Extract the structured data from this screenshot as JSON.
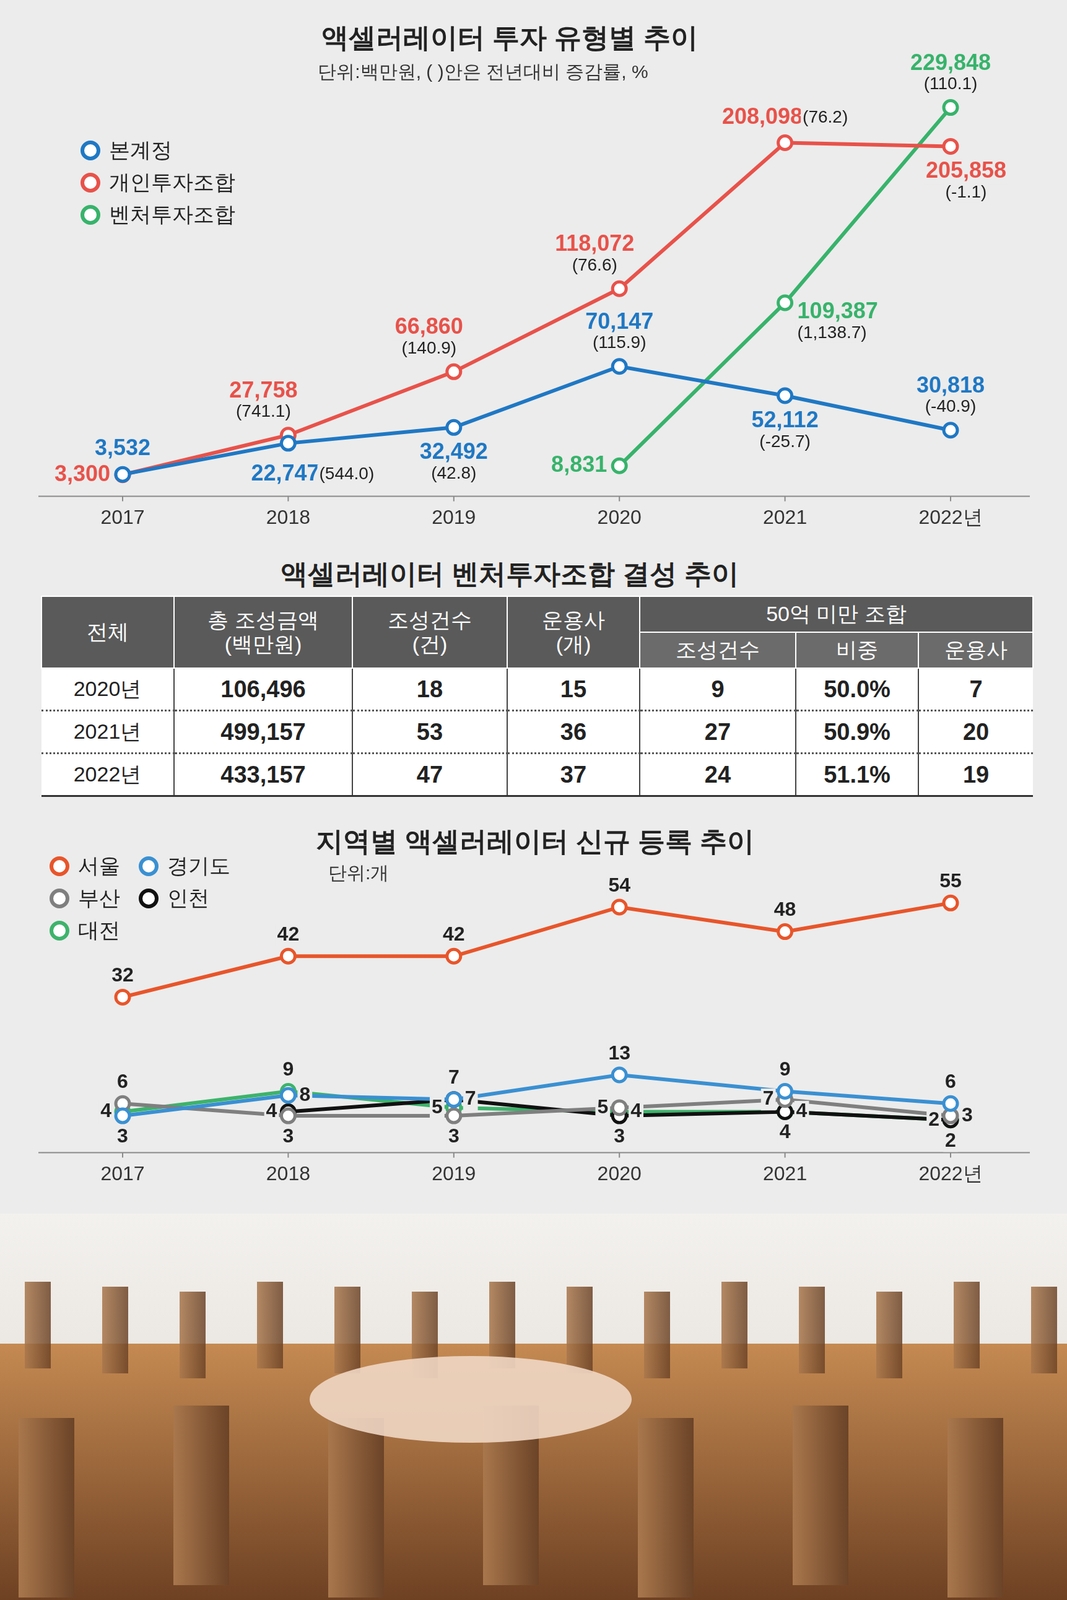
{
  "chart_data": [
    {
      "type": "line",
      "title": "액셀러레이터 투자 유형별 추이",
      "subtitle": "단위:백만원, ( )안은 전년대비 증감률, %",
      "categories": [
        "2017",
        "2018",
        "2019",
        "2020",
        "2021",
        "2022년"
      ],
      "series": [
        {
          "name": "본계정",
          "color": "#1f78c4",
          "marker": "circle",
          "values": [
            3532,
            22747,
            32492,
            70147,
            52112,
            30818
          ],
          "value_labels": [
            "3,532",
            "22,747",
            "32,492",
            "70,147",
            "52,112",
            "30,818"
          ],
          "change_labels": [
            null,
            "(544.0)",
            "(42.8)",
            "(115.9)",
            "(-25.7)",
            "(-40.9)"
          ]
        },
        {
          "name": "개인투자조합",
          "color": "#e8524a",
          "marker": "circle",
          "values": [
            3300,
            27758,
            66860,
            118072,
            208098,
            205858
          ],
          "value_labels": [
            "3,300",
            "27,758",
            "66,860",
            "118,072",
            "208,098",
            "205,858"
          ],
          "change_labels": [
            null,
            "(741.1)",
            "(140.9)",
            "(76.6)",
            "(76.2)",
            "(-1.1)"
          ]
        },
        {
          "name": "벤처투자조합",
          "color": "#37b36b",
          "marker": "circle",
          "values": [
            null,
            null,
            null,
            8831,
            109387,
            229848
          ],
          "value_labels": [
            null,
            null,
            null,
            "8,831",
            "109,387",
            "229,848"
          ],
          "change_labels": [
            null,
            null,
            null,
            null,
            "(1,138.7)",
            "(110.1)"
          ]
        }
      ],
      "ylim": [
        -10000,
        240000
      ],
      "grid": false,
      "tick_labels": "x",
      "legend": "top-left",
      "data_labels": true
    },
    {
      "type": "line",
      "title": "지역별 액셀러레이터 신규 등록 추이",
      "subtitle": "단위:개",
      "categories": [
        "2017",
        "2018",
        "2019",
        "2020",
        "2021",
        "2022년"
      ],
      "series": [
        {
          "name": "서울",
          "color": "#e8552a",
          "marker": "circle",
          "values": [
            32,
            42,
            42,
            54,
            48,
            55
          ]
        },
        {
          "name": "경기도",
          "color": "#3a90d2",
          "marker": "circle",
          "values": [
            3,
            8,
            7,
            13,
            9,
            6
          ]
        },
        {
          "name": "부산",
          "color": "#7f7f7f",
          "marker": "circle",
          "values": [
            6,
            3,
            3,
            5,
            7,
            3
          ]
        },
        {
          "name": "인천",
          "color": "#111111",
          "marker": "circle",
          "values": [
            null,
            4,
            7,
            3,
            4,
            2
          ]
        },
        {
          "name": "대전",
          "color": "#3db36b",
          "marker": "circle",
          "values": [
            4,
            9,
            5,
            4,
            4,
            2
          ]
        }
      ],
      "ylim": [
        -6,
        67
      ],
      "grid": false,
      "tick_labels": "x",
      "legend": "top-left",
      "data_labels": true
    }
  ],
  "table": {
    "title": "액셀러레이터 벤처투자조합 결성 추이",
    "header": [
      [
        "전체",
        "총 조성금액(백만원)",
        "조성건수(건)",
        "운용사(개)",
        "50억 미만 조합"
      ],
      [
        "조성건수",
        "비중",
        "운용사"
      ]
    ],
    "rows": [
      [
        "2020년",
        "106,496",
        "18",
        "15",
        "9",
        "50.0%",
        "7"
      ],
      [
        "2021년",
        "499,157",
        "53",
        "36",
        "27",
        "50.9%",
        "20"
      ],
      [
        "2022년",
        "433,157",
        "47",
        "37",
        "24",
        "51.1%",
        "19"
      ]
    ]
  }
}
